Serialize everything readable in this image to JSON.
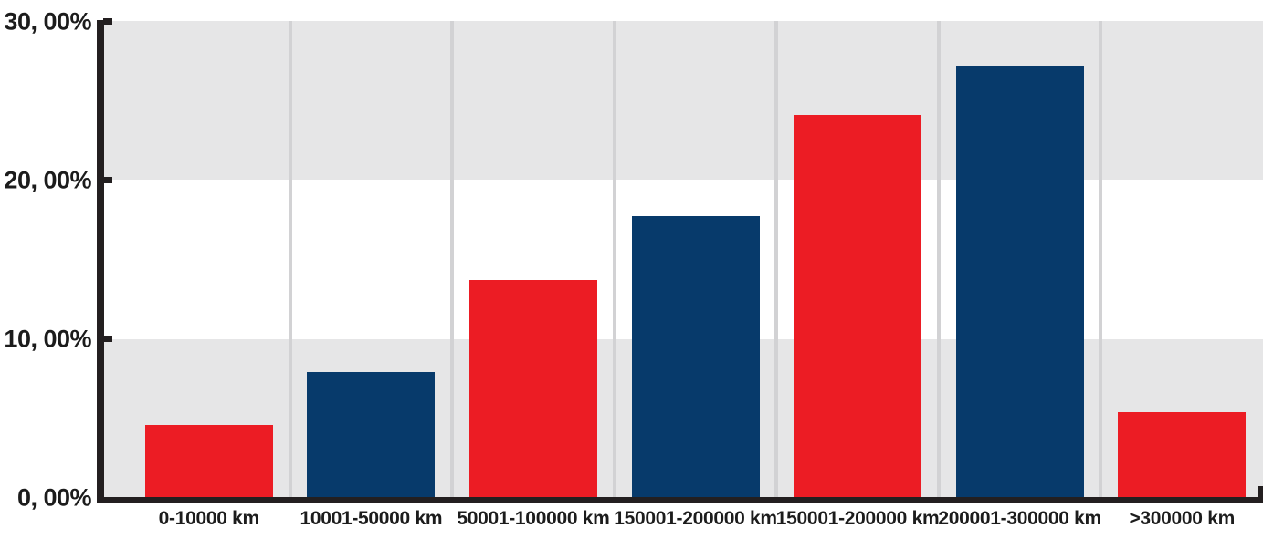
{
  "chart_data": {
    "type": "bar",
    "title": "",
    "xlabel": "",
    "ylabel": "",
    "categories": [
      "0-10000 km",
      "10001-50000 km",
      "50001-100000 km",
      "150001-200000 km",
      "150001-200000 km",
      "200001-300000 km",
      ">300000 km"
    ],
    "values": [
      4.6,
      7.9,
      13.7,
      17.7,
      24.1,
      27.2,
      5.4
    ],
    "bar_colors": [
      "#EC1C24",
      "#073A6B",
      "#EC1C24",
      "#073A6B",
      "#EC1C24",
      "#073A6B",
      "#EC1C24"
    ],
    "y_tick_labels": [
      "30, 00%",
      "20, 00%",
      "10, 00%",
      "0, 00%"
    ],
    "y_tick_values": [
      30,
      20,
      10,
      0
    ],
    "ylim": [
      0,
      30
    ],
    "legend_position": "none",
    "grid": {
      "horizontal_bands": [
        "gray",
        "white",
        "gray"
      ],
      "vertical_gridlines": true
    },
    "colors": {
      "red": "#EC1C24",
      "navy": "#073A6B",
      "band_gray": "#E6E6E7",
      "gridline_gray": "#D2D2D4",
      "axis_black": "#231F20",
      "text_black": "#1C1C1C"
    }
  }
}
